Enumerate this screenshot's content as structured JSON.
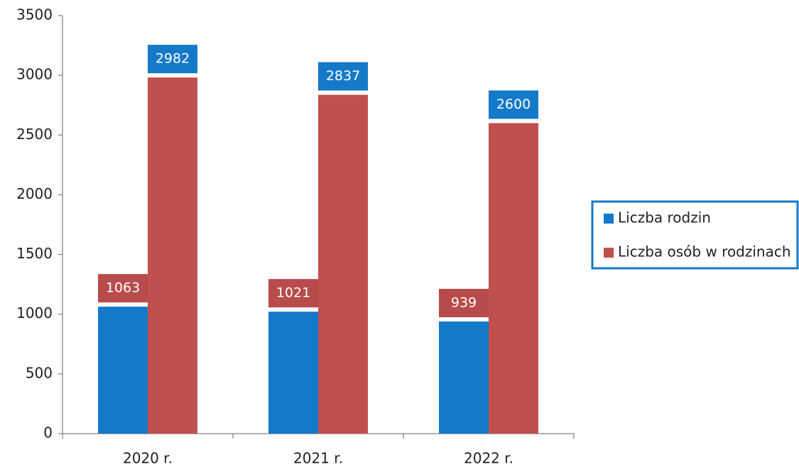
{
  "chart_data": {
    "type": "bar",
    "categories": [
      "2020 r.",
      "2021 r.",
      "2022 r."
    ],
    "series": [
      {
        "name": "Liczba rodzin",
        "color": "#1479c9",
        "label_color": "#b84b4b",
        "values": [
          1063,
          1021,
          939
        ]
      },
      {
        "name": "Liczba osób w rodzinach",
        "color": "#c0504d",
        "label_color": "#1479c9",
        "values": [
          2982,
          2837,
          2600
        ]
      }
    ],
    "ylim": [
      0,
      3500
    ],
    "yticks": [
      0,
      500,
      1000,
      1500,
      2000,
      2500,
      3000,
      3500
    ],
    "grid": false,
    "legend": "right"
  }
}
